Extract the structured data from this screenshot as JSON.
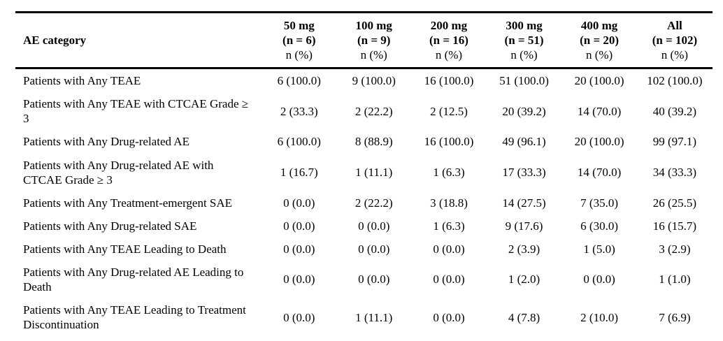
{
  "table": {
    "header": {
      "category_label": "AE category",
      "columns": [
        {
          "dose": "50 mg",
          "n": "(n = 6)",
          "unit": "n (%)"
        },
        {
          "dose": "100 mg",
          "n": "(n = 9)",
          "unit": "n (%)"
        },
        {
          "dose": "200 mg",
          "n": "(n = 16)",
          "unit": "n (%)"
        },
        {
          "dose": "300 mg",
          "n": "(n = 51)",
          "unit": "n (%)"
        },
        {
          "dose": "400 mg",
          "n": "(n = 20)",
          "unit": "n (%)"
        },
        {
          "dose": "All",
          "n": "(n = 102)",
          "unit": "n (%)"
        }
      ]
    },
    "rows": [
      {
        "category": "Patients with Any TEAE",
        "values": [
          "6 (100.0)",
          "9 (100.0)",
          "16 (100.0)",
          "51 (100.0)",
          "20 (100.0)",
          "102 (100.0)"
        ]
      },
      {
        "category": "Patients with Any TEAE with CTCAE Grade ≥ 3",
        "values": [
          "2 (33.3)",
          "2 (22.2)",
          "2 (12.5)",
          "20 (39.2)",
          "14 (70.0)",
          "40 (39.2)"
        ]
      },
      {
        "category": "Patients with Any Drug-related AE",
        "values": [
          "6 (100.0)",
          "8 (88.9)",
          "16 (100.0)",
          "49 (96.1)",
          "20 (100.0)",
          "99 (97.1)"
        ]
      },
      {
        "category": "Patients with Any Drug-related AE with CTCAE Grade ≥ 3",
        "values": [
          "1 (16.7)",
          "1 (11.1)",
          "1 (6.3)",
          "17 (33.3)",
          "14 (70.0)",
          "34 (33.3)"
        ]
      },
      {
        "category": "Patients with Any Treatment-emergent SAE",
        "values": [
          "0 (0.0)",
          "2 (22.2)",
          "3 (18.8)",
          "14 (27.5)",
          "7 (35.0)",
          "26 (25.5)"
        ]
      },
      {
        "category": "Patients with Any Drug-related SAE",
        "values": [
          "0 (0.0)",
          "0 (0.0)",
          "1 (6.3)",
          "9 (17.6)",
          "6 (30.0)",
          "16 (15.7)"
        ]
      },
      {
        "category": "Patients with Any TEAE Leading to Death",
        "values": [
          "0 (0.0)",
          "0 (0.0)",
          "0 (0.0)",
          "2 (3.9)",
          "1 (5.0)",
          "3 (2.9)"
        ]
      },
      {
        "category": "Patients with Any Drug-related AE Leading to Death",
        "values": [
          "0 (0.0)",
          "0 (0.0)",
          "0 (0.0)",
          "1 (2.0)",
          "0 (0.0)",
          "1 (1.0)"
        ]
      },
      {
        "category": "Patients with Any TEAE Leading to Treatment Discontinuation",
        "values": [
          "0 (0.0)",
          "1 (11.1)",
          "0 (0.0)",
          "4 (7.8)",
          "2 (10.0)",
          "7 (6.9)"
        ]
      }
    ]
  },
  "colors": {
    "text": "#000000",
    "background": "#ffffff",
    "rule": "#000000"
  }
}
